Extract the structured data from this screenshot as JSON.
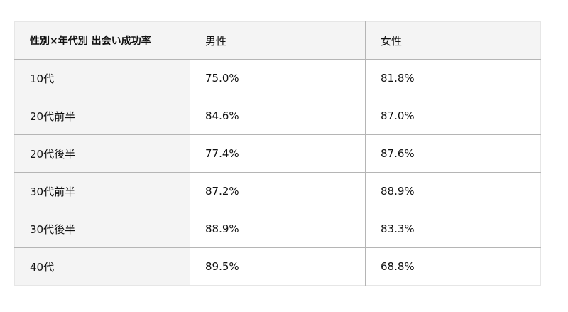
{
  "table": {
    "headers": [
      "性別×年代別 出会い成功率",
      "男性",
      "女性"
    ],
    "rows": [
      [
        "10代",
        "75.0%",
        "81.8%"
      ],
      [
        "20代前半",
        "84.6%",
        "87.0%"
      ],
      [
        "20代後半",
        "77.4%",
        "87.6%"
      ],
      [
        "30代前半",
        "87.2%",
        "88.9%"
      ],
      [
        "30代後半",
        "88.9%",
        "83.3%"
      ],
      [
        "40代",
        "89.5%",
        "68.8%"
      ]
    ]
  },
  "colors": {
    "header_bg": "#f4f4f4",
    "border": "#b5b5b5"
  }
}
